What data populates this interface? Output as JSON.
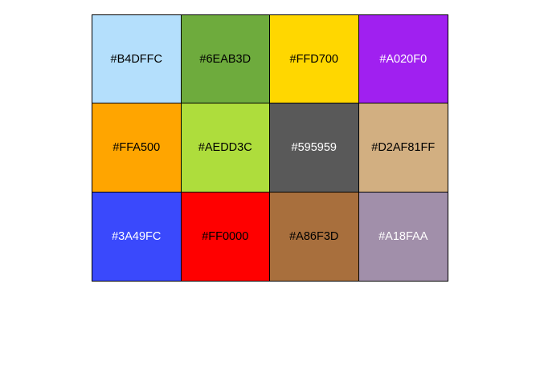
{
  "swatches": [
    {
      "label": "#B4DFFC",
      "color": "#B4DFFC",
      "text_color": "#000000"
    },
    {
      "label": "#6EAB3D",
      "color": "#6EAB3D",
      "text_color": "#000000"
    },
    {
      "label": "#FFD700",
      "color": "#FFD700",
      "text_color": "#000000"
    },
    {
      "label": "#A020F0",
      "color": "#A020F0",
      "text_color": "#FFFFFF"
    },
    {
      "label": "#FFA500",
      "color": "#FFA500",
      "text_color": "#000000"
    },
    {
      "label": "#AEDD3C",
      "color": "#AEDD3C",
      "text_color": "#000000"
    },
    {
      "label": "#595959",
      "color": "#595959",
      "text_color": "#FFFFFF"
    },
    {
      "label": "#D2AF81FF",
      "color": "#D2AF81",
      "text_color": "#000000"
    },
    {
      "label": "#3A49FC",
      "color": "#3A49FC",
      "text_color": "#FFFFFF"
    },
    {
      "label": "#FF0000",
      "color": "#FF0000",
      "text_color": "#000000"
    },
    {
      "label": "#A86F3D",
      "color": "#A86F3D",
      "text_color": "#000000"
    },
    {
      "label": "#A18FAA",
      "color": "#A18FAA",
      "text_color": "#FFFFFF"
    }
  ]
}
